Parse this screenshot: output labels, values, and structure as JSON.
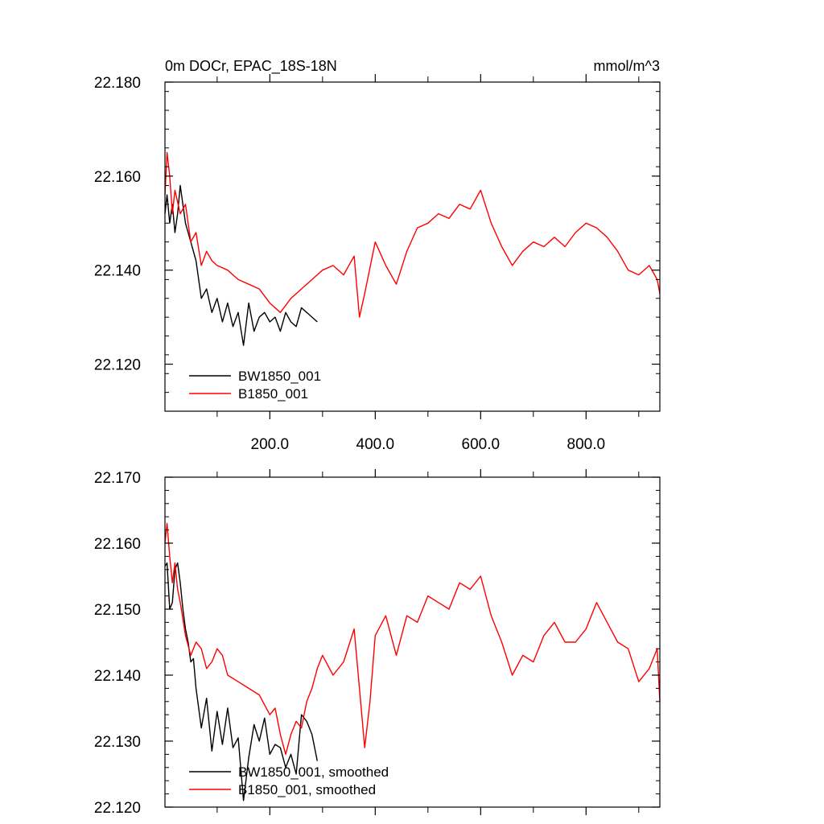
{
  "chart_data": [
    {
      "type": "line",
      "title": "0m DOCr, EPAC_18S-18N",
      "units": "mmol/m^3",
      "xlim": [
        1,
        940
      ],
      "ylim": [
        22.11,
        22.18
      ],
      "xticks": [
        200,
        400,
        600,
        800
      ],
      "xtick_labels": [
        "200.0",
        "400.0",
        "600.0",
        "800.0"
      ],
      "yticks": [
        22.12,
        22.14,
        22.16,
        22.18
      ],
      "ytick_labels": [
        "22.120",
        "22.140",
        "22.160",
        "22.180"
      ],
      "grid": false,
      "legend_position": "bottom-left",
      "series": [
        {
          "name": "BW1850_001",
          "color": "#000000",
          "x": [
            1,
            5,
            10,
            15,
            20,
            25,
            30,
            40,
            50,
            60,
            70,
            80,
            90,
            100,
            110,
            120,
            130,
            140,
            150,
            160,
            170,
            180,
            190,
            200,
            210,
            220,
            230,
            240,
            250,
            260,
            270,
            280,
            290
          ],
          "y": [
            22.152,
            22.156,
            22.15,
            22.154,
            22.148,
            22.152,
            22.158,
            22.15,
            22.146,
            22.142,
            22.134,
            22.136,
            22.131,
            22.134,
            22.129,
            22.133,
            22.128,
            22.131,
            22.124,
            22.133,
            22.127,
            22.13,
            22.131,
            22.129,
            22.13,
            22.127,
            22.131,
            22.129,
            22.128,
            22.132,
            22.131,
            22.13,
            22.129
          ]
        },
        {
          "name": "B1850_001",
          "color": "#ff0000",
          "x": [
            1,
            5,
            10,
            15,
            20,
            30,
            40,
            50,
            60,
            70,
            80,
            90,
            100,
            120,
            140,
            160,
            180,
            200,
            220,
            240,
            260,
            280,
            300,
            320,
            340,
            360,
            370,
            380,
            400,
            420,
            440,
            460,
            480,
            500,
            520,
            540,
            560,
            580,
            600,
            620,
            640,
            660,
            680,
            700,
            720,
            740,
            760,
            780,
            800,
            820,
            840,
            860,
            880,
            900,
            920,
            935,
            940
          ],
          "y": [
            22.156,
            22.165,
            22.16,
            22.152,
            22.157,
            22.152,
            22.154,
            22.146,
            22.148,
            22.141,
            22.144,
            22.142,
            22.141,
            22.14,
            22.138,
            22.137,
            22.136,
            22.133,
            22.131,
            22.134,
            22.136,
            22.138,
            22.14,
            22.141,
            22.139,
            22.143,
            22.13,
            22.135,
            22.146,
            22.141,
            22.137,
            22.144,
            22.149,
            22.15,
            22.152,
            22.151,
            22.154,
            22.153,
            22.157,
            22.15,
            22.145,
            22.141,
            22.144,
            22.146,
            22.145,
            22.147,
            22.145,
            22.148,
            22.15,
            22.149,
            22.147,
            22.144,
            22.14,
            22.139,
            22.141,
            22.138,
            22.135
          ]
        }
      ]
    },
    {
      "type": "line",
      "title": "",
      "units": "",
      "xlim": [
        1,
        940
      ],
      "ylim": [
        22.12,
        22.17
      ],
      "yticks": [
        22.12,
        22.13,
        22.14,
        22.15,
        22.16,
        22.17
      ],
      "ytick_labels": [
        "22.120",
        "22.130",
        "22.140",
        "22.150",
        "22.160",
        "22.170"
      ],
      "grid": false,
      "legend_position": "bottom-left",
      "series": [
        {
          "name": "BW1850_001, smoothed",
          "color": "#000000",
          "x": [
            1,
            5,
            10,
            15,
            20,
            25,
            30,
            35,
            40,
            45,
            50,
            55,
            60,
            70,
            80,
            90,
            100,
            110,
            120,
            130,
            140,
            150,
            160,
            170,
            180,
            190,
            200,
            210,
            220,
            230,
            240,
            250,
            260,
            270,
            280,
            290
          ],
          "y": [
            22.1565,
            22.157,
            22.15,
            22.151,
            22.156,
            22.157,
            22.154,
            22.15,
            22.147,
            22.145,
            22.142,
            22.1425,
            22.138,
            22.132,
            22.1365,
            22.1285,
            22.1345,
            22.1295,
            22.135,
            22.129,
            22.1305,
            22.121,
            22.1275,
            22.1325,
            22.13,
            22.1335,
            22.128,
            22.1295,
            22.129,
            22.126,
            22.128,
            22.125,
            22.134,
            22.133,
            22.131,
            22.127
          ]
        },
        {
          "name": "B1850_001, smoothed",
          "color": "#ff0000",
          "x": [
            1,
            5,
            10,
            15,
            20,
            25,
            30,
            40,
            50,
            60,
            70,
            80,
            90,
            100,
            110,
            120,
            140,
            160,
            180,
            200,
            210,
            220,
            230,
            240,
            250,
            260,
            270,
            280,
            290,
            300,
            320,
            340,
            360,
            370,
            380,
            390,
            400,
            420,
            440,
            460,
            480,
            500,
            520,
            540,
            560,
            580,
            600,
            620,
            640,
            660,
            680,
            700,
            720,
            740,
            760,
            780,
            800,
            820,
            840,
            860,
            880,
            900,
            920,
            935,
            940
          ],
          "y": [
            22.16,
            22.163,
            22.158,
            22.154,
            22.157,
            22.153,
            22.151,
            22.146,
            22.143,
            22.145,
            22.144,
            22.141,
            22.142,
            22.144,
            22.143,
            22.14,
            22.139,
            22.138,
            22.137,
            22.134,
            22.135,
            22.131,
            22.128,
            22.131,
            22.133,
            22.132,
            22.136,
            22.138,
            22.141,
            22.143,
            22.14,
            22.142,
            22.147,
            22.138,
            22.129,
            22.136,
            22.146,
            22.149,
            22.143,
            22.149,
            22.148,
            22.152,
            22.151,
            22.15,
            22.154,
            22.153,
            22.155,
            22.149,
            22.145,
            22.14,
            22.143,
            22.142,
            22.146,
            22.148,
            22.145,
            22.145,
            22.147,
            22.151,
            22.148,
            22.145,
            22.144,
            22.139,
            22.141,
            22.144,
            22.136
          ]
        }
      ]
    }
  ]
}
